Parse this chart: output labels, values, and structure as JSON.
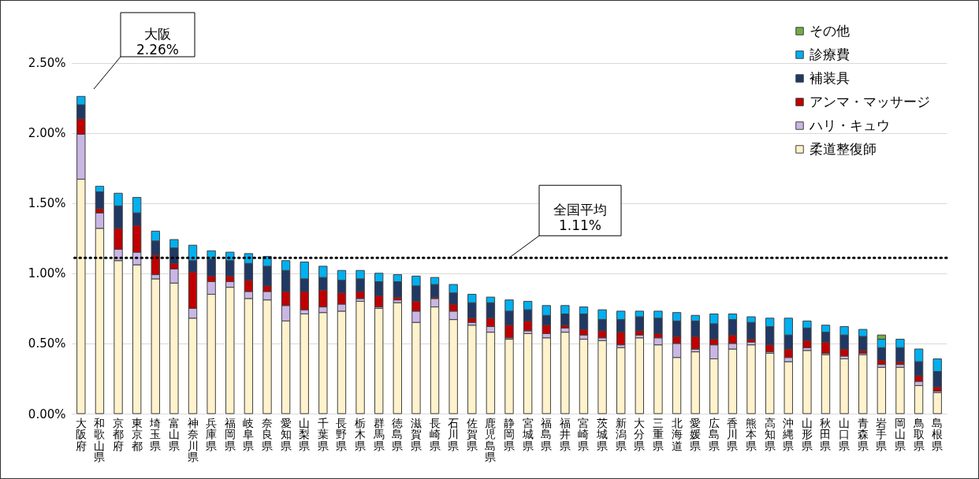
{
  "chart_data": {
    "type": "bar",
    "stacked": true,
    "grid": "y",
    "legend": "top right",
    "categories": [
      "大阪府",
      "和歌山県",
      "京都府",
      "東京都",
      "埼玉県",
      "富山県",
      "神奈川県",
      "兵庫県",
      "福岡県",
      "岐阜県",
      "奈良県",
      "愛知県",
      "山梨県",
      "千葉県",
      "長野県",
      "栃木県",
      "群馬県",
      "徳島県",
      "滋賀県",
      "長崎県",
      "石川県",
      "佐賀県",
      "鹿児島県",
      "静岡県",
      "宮城県",
      "福島県",
      "福井県",
      "宮崎県",
      "茨城県",
      "新潟県",
      "大分県",
      "三重県",
      "北海道",
      "愛媛県",
      "広島県",
      "香川県",
      "熊本県",
      "高知県",
      "沖縄県",
      "山形県",
      "秋田県",
      "山口県",
      "青森県",
      "岩手県",
      "岡山県",
      "鳥取県",
      "島根県"
    ],
    "series": [
      {
        "name": "柔道整復師",
        "color": "#fff2cc",
        "values": [
          1.67,
          1.32,
          1.09,
          1.06,
          0.96,
          0.93,
          0.68,
          0.85,
          0.9,
          0.82,
          0.81,
          0.66,
          0.71,
          0.72,
          0.73,
          0.8,
          0.75,
          0.79,
          0.65,
          0.76,
          0.67,
          0.63,
          0.58,
          0.53,
          0.57,
          0.54,
          0.58,
          0.53,
          0.52,
          0.47,
          0.54,
          0.49,
          0.4,
          0.44,
          0.39,
          0.46,
          0.49,
          0.43,
          0.37,
          0.45,
          0.42,
          0.39,
          0.42,
          0.33,
          0.33,
          0.2,
          0.15
        ]
      },
      {
        "name": "ハリ・キュウ",
        "color": "#c9b6e4",
        "values": [
          0.32,
          0.11,
          0.08,
          0.09,
          0.03,
          0.1,
          0.07,
          0.09,
          0.04,
          0.05,
          0.06,
          0.11,
          0.03,
          0.04,
          0.05,
          0.02,
          0.01,
          0.02,
          0.08,
          0.06,
          0.06,
          0.02,
          0.04,
          0.01,
          0.02,
          0.03,
          0.03,
          0.03,
          0.02,
          0.02,
          0.02,
          0.05,
          0.1,
          0.02,
          0.1,
          0.04,
          0.02,
          0.01,
          0.03,
          0.02,
          0.01,
          0.02,
          0.01,
          0.02,
          0.02,
          0.03,
          0.01
        ]
      },
      {
        "name": "アンマ・マッサージ",
        "color": "#c00000",
        "values": [
          0.11,
          0.03,
          0.15,
          0.19,
          0.14,
          0.04,
          0.26,
          0.04,
          0.04,
          0.08,
          0.04,
          0.1,
          0.13,
          0.12,
          0.08,
          0.05,
          0.08,
          0.02,
          0.07,
          0.01,
          0.05,
          0.03,
          0.06,
          0.09,
          0.07,
          0.06,
          0.02,
          0.04,
          0.05,
          0.09,
          0.03,
          0.03,
          0.05,
          0.09,
          0.04,
          0.06,
          0.02,
          0.05,
          0.06,
          0.05,
          0.08,
          0.05,
          0.02,
          0.03,
          0.02,
          0.04,
          0.03
        ]
      },
      {
        "name": "補装具",
        "color": "#203864",
        "values": [
          0.1,
          0.12,
          0.16,
          0.09,
          0.1,
          0.11,
          0.08,
          0.12,
          0.11,
          0.12,
          0.14,
          0.15,
          0.09,
          0.09,
          0.09,
          0.09,
          0.1,
          0.11,
          0.11,
          0.09,
          0.08,
          0.11,
          0.11,
          0.1,
          0.08,
          0.07,
          0.08,
          0.11,
          0.08,
          0.09,
          0.1,
          0.11,
          0.11,
          0.11,
          0.11,
          0.11,
          0.12,
          0.13,
          0.1,
          0.09,
          0.07,
          0.1,
          0.1,
          0.09,
          0.1,
          0.1,
          0.11
        ]
      },
      {
        "name": "診療費",
        "color": "#00b0f0",
        "values": [
          0.06,
          0.04,
          0.09,
          0.11,
          0.07,
          0.06,
          0.11,
          0.06,
          0.06,
          0.07,
          0.07,
          0.07,
          0.12,
          0.08,
          0.07,
          0.06,
          0.06,
          0.05,
          0.07,
          0.05,
          0.06,
          0.06,
          0.04,
          0.08,
          0.06,
          0.07,
          0.06,
          0.05,
          0.07,
          0.06,
          0.04,
          0.05,
          0.06,
          0.04,
          0.07,
          0.04,
          0.04,
          0.06,
          0.12,
          0.05,
          0.05,
          0.06,
          0.05,
          0.06,
          0.06,
          0.09,
          0.09
        ]
      },
      {
        "name": "その他",
        "color": "#70ad47",
        "values": [
          null,
          null,
          null,
          null,
          null,
          null,
          null,
          null,
          null,
          null,
          null,
          null,
          null,
          null,
          null,
          null,
          null,
          null,
          null,
          null,
          null,
          null,
          null,
          null,
          null,
          null,
          null,
          null,
          null,
          null,
          null,
          null,
          null,
          null,
          null,
          null,
          null,
          null,
          null,
          null,
          null,
          null,
          null,
          0.03,
          null,
          null,
          null
        ]
      }
    ],
    "ylim": [
      0,
      2.75
    ],
    "yticks": [
      {
        "value": 0,
        "label": "0.00%"
      },
      {
        "value": 0.5,
        "label": "0.50%"
      },
      {
        "value": 1,
        "label": "1.00%"
      },
      {
        "value": 1.5,
        "label": "1.50%"
      },
      {
        "value": 2,
        "label": "2.00%"
      },
      {
        "value": 2.5,
        "label": "2.50%"
      }
    ],
    "ref_lines": [
      {
        "axis": "y",
        "value": 1.11,
        "label": "全国平均\n1.11%",
        "color": "#000000",
        "line_style": "dotted"
      }
    ],
    "annotations": [
      "大阪\n2.26%"
    ]
  }
}
